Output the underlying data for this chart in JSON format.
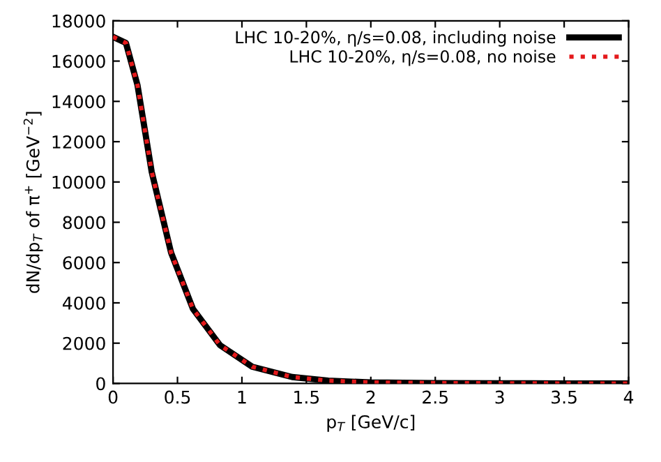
{
  "chart_data": {
    "type": "line",
    "xlabel": "p$_{T}$ [GeV/c]",
    "ylabel": "dN/dp$_{T}$ of π$^{+}$ [GeV$^{−2}$]",
    "xlim": [
      0,
      4
    ],
    "ylim": [
      0,
      18000
    ],
    "xticks": [
      0,
      0.5,
      1,
      1.5,
      2,
      2.5,
      3,
      3.5,
      4
    ],
    "yticks": [
      0,
      2000,
      4000,
      6000,
      8000,
      10000,
      12000,
      14000,
      16000,
      18000
    ],
    "grid": false,
    "legend": "top right",
    "series": [
      {
        "name": "LHC 10-20%, η/s=0.08, including noise",
        "color": "#000000",
        "line_style": "solid",
        "x": [
          0,
          0.1,
          0.19,
          0.3,
          0.45,
          0.62,
          0.83,
          1.08,
          1.39,
          1.67,
          2.0,
          2.5,
          3.0,
          3.5,
          4.0
        ],
        "values": [
          17200,
          16900,
          14800,
          10500,
          6500,
          3700,
          1900,
          830,
          320,
          140,
          50,
          20,
          10,
          0,
          0
        ]
      },
      {
        "name": "LHC 10-20%, η/s=0.08, no noise",
        "color": "#e41a1c",
        "line_style": "dotted",
        "x": [
          0,
          0.1,
          0.19,
          0.3,
          0.45,
          0.62,
          0.83,
          1.08,
          1.39,
          1.67,
          2.0,
          2.5,
          3.0,
          3.5,
          4.0
        ],
        "values": [
          17200,
          16900,
          14800,
          10500,
          6500,
          3700,
          1900,
          830,
          320,
          140,
          50,
          20,
          10,
          0,
          0
        ]
      }
    ]
  }
}
